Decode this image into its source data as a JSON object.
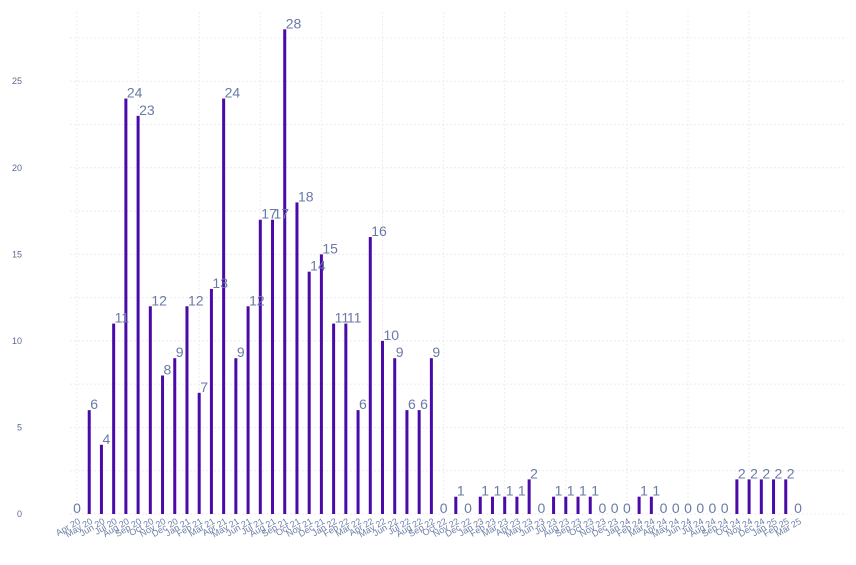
{
  "chart_data": {
    "type": "bar",
    "color": "#4a0aa8",
    "grid": true,
    "ylim": [
      0,
      29
    ],
    "yticks": [
      0,
      5,
      10,
      15,
      20,
      25
    ],
    "categories": [
      "Apr 20",
      "May 20",
      "Jun 20",
      "Jul 20",
      "Aug 20",
      "Sep 20",
      "Oct 20",
      "Nov 20",
      "Dec 20",
      "Jan 21",
      "Feb 21",
      "Mar 21",
      "Apr 21",
      "May 21",
      "Jun 21",
      "Jul 21",
      "Aug 21",
      "Sep 21",
      "Oct 21",
      "Nov 21",
      "Dec 21",
      "Jan 22",
      "Feb 22",
      "Mar 22",
      "Apr 22",
      "May 22",
      "Jun 22",
      "Jul 22",
      "Aug 22",
      "Sep 22",
      "Oct 22",
      "Nov 22",
      "Dec 22",
      "Jan 23",
      "Feb 23",
      "Mar 23",
      "Apr 23",
      "May 23",
      "Jun 23",
      "Jul 23",
      "Aug 23",
      "Sep 23",
      "Oct 23",
      "Nov 23",
      "Dec 23",
      "Jan 24",
      "Feb 24",
      "Mar 24",
      "Apr 24",
      "May 24",
      "Jun 24",
      "Jul 24",
      "Aug 24",
      "Sep 24",
      "Oct 24",
      "Nov 24",
      "Dec 24",
      "Jan 25",
      "Feb 25",
      "Mar 25"
    ],
    "values": [
      0,
      6,
      4,
      11,
      24,
      23,
      12,
      8,
      9,
      12,
      7,
      13,
      24,
      9,
      12,
      17,
      17,
      28,
      18,
      14,
      15,
      11,
      11,
      6,
      16,
      10,
      9,
      6,
      6,
      9,
      0,
      1,
      0,
      1,
      1,
      1,
      1,
      2,
      0,
      1,
      1,
      1,
      1,
      0,
      0,
      0,
      1,
      1,
      0,
      0,
      0,
      0,
      0,
      0,
      2,
      2,
      2,
      2,
      2,
      0
    ]
  }
}
